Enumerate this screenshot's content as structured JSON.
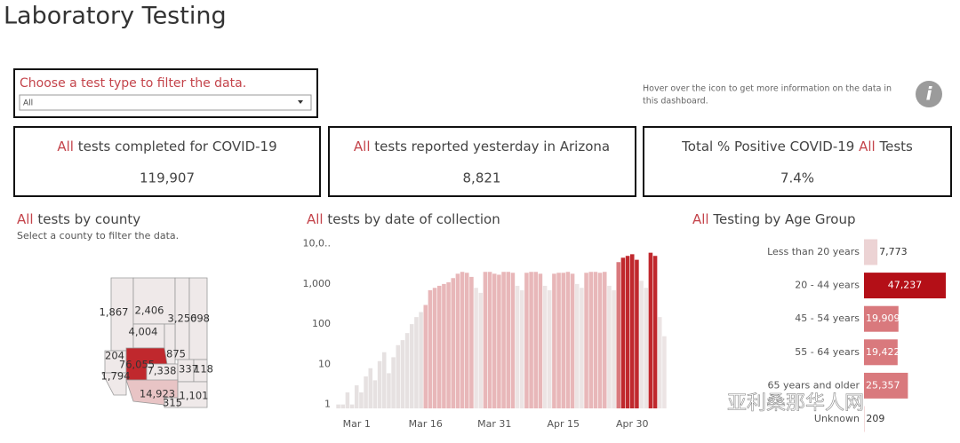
{
  "header": {
    "title": "Laboratory Testing"
  },
  "accent_color": "#c4444b",
  "filter": {
    "label": "Choose a test type to filter the data.",
    "selected": "All"
  },
  "info": {
    "lines": [
      "Hover over the icon to get more information on the data in",
      "this dashboard."
    ],
    "icon": "i"
  },
  "kpis": [
    {
      "parts": [
        {
          "text": "All",
          "accent": true
        },
        {
          "text": " tests completed for COVID-19"
        }
      ],
      "value": "119,907"
    },
    {
      "parts": [
        {
          "text": "All",
          "accent": true
        },
        {
          "text": " tests reported yesterday in Arizona"
        }
      ],
      "value": "8,821"
    },
    {
      "parts": [
        {
          "text": "Total % Positive COVID-19 "
        },
        {
          "text": "All",
          "accent": true
        },
        {
          "text": " Tests"
        }
      ],
      "value": "7.4%"
    }
  ],
  "county_map": {
    "parts": [
      {
        "text": "All",
        "accent": true
      },
      {
        "text": " tests by county"
      }
    ],
    "subtitle": "Select a county to filter the data.",
    "labels": [
      "1,867",
      "2,406",
      "3,250",
      "698",
      "4,004",
      "204",
      "76,055",
      "875",
      "7,338",
      "337",
      "118",
      "1,794",
      "14,923",
      "1,101",
      "315"
    ]
  },
  "chart_data": [
    {
      "type": "bar",
      "parts": [
        {
          "text": "All",
          "accent": true
        },
        {
          "text": " tests by date of collection"
        }
      ],
      "log": true,
      "grid": false,
      "ylim": [
        0.8,
        14000
      ],
      "yticks": [
        1,
        10,
        100,
        {
          "value": 1000,
          "label": "1,000"
        },
        {
          "value": 10000,
          "label": "10,0.."
        }
      ],
      "categories": [
        null,
        null,
        null,
        null,
        "Mar 1",
        null,
        null,
        null,
        null,
        null,
        null,
        null,
        null,
        null,
        null,
        null,
        null,
        null,
        null,
        "Mar 16",
        null,
        null,
        null,
        null,
        null,
        null,
        null,
        null,
        null,
        null,
        null,
        null,
        null,
        null,
        "Mar 31",
        null,
        null,
        null,
        null,
        null,
        null,
        null,
        null,
        null,
        null,
        null,
        null,
        null,
        null,
        "Apr 15",
        null,
        null,
        null,
        null,
        null,
        null,
        null,
        null,
        null,
        null,
        null,
        null,
        null,
        null,
        "Apr 30",
        null,
        null,
        null,
        null,
        null,
        null,
        null
      ],
      "values": [
        1,
        1,
        2,
        1,
        3,
        2,
        5,
        8,
        4,
        12,
        20,
        6,
        15,
        30,
        40,
        60,
        100,
        150,
        200,
        300,
        700,
        800,
        900,
        1000,
        1100,
        1400,
        1800,
        2000,
        1900,
        1500,
        800,
        600,
        2000,
        2000,
        1800,
        1700,
        2000,
        2000,
        1900,
        900,
        700,
        1900,
        2000,
        2000,
        1800,
        900,
        700,
        1800,
        1900,
        1900,
        2000,
        1800,
        1000,
        800,
        1900,
        2000,
        2000,
        1900,
        2000,
        900,
        700,
        3500,
        4500,
        5000,
        5500,
        4000,
        1200,
        800,
        6000,
        5000,
        150,
        50
      ],
      "colors": [
        "#e6e1e1",
        "#e6e1e1",
        "#e6e1e1",
        "#e6e1e1",
        "#e6e1e1",
        "#e6e1e1",
        "#e6e1e1",
        "#e6e1e1",
        "#e6e1e1",
        "#e6e1e1",
        "#e6e1e1",
        "#e6e1e1",
        "#e6e1e1",
        "#e6e1e1",
        "#e6e1e1",
        "#e6e1e1",
        "#e6e1e1",
        "#e6e1e1",
        "#e6e1e1",
        "#e8b7b9",
        "#e8b7b9",
        "#e8b7b9",
        "#e8b7b9",
        "#e8b7b9",
        "#e8b7b9",
        "#e8b7b9",
        "#e8b7b9",
        "#e8b7b9",
        "#e8b7b9",
        "#e8b7b9",
        "#ece4e4",
        "#ece4e4",
        "#e8b7b9",
        "#e8b7b9",
        "#e8b7b9",
        "#e8b7b9",
        "#e8b7b9",
        "#e8b7b9",
        "#e8b7b9",
        "#ece4e4",
        "#ece4e4",
        "#e8b7b9",
        "#e8b7b9",
        "#e8b7b9",
        "#e8b7b9",
        "#ece4e4",
        "#ece4e4",
        "#e8b7b9",
        "#e8b7b9",
        "#e8b7b9",
        "#e8b7b9",
        "#e8b7b9",
        "#ece4e4",
        "#ece4e4",
        "#e8b7b9",
        "#e8b7b9",
        "#e8b7b9",
        "#e8b7b9",
        "#e8b7b9",
        "#ece4e4",
        "#ece4e4",
        "#d9797d",
        "#c0282d",
        "#c0282d",
        "#c0282d",
        "#c0282d",
        "#ece4e4",
        "#ece4e4",
        "#c0282d",
        "#c0282d",
        "#ece4e4",
        "#ece4e4"
      ]
    },
    {
      "type": "hbar",
      "parts": [
        {
          "text": "All",
          "accent": true
        },
        {
          "text": " Testing by Age Group"
        }
      ],
      "categories": [
        "Less than 20 years",
        "20 - 44 years",
        "45 - 54 years",
        "55 - 64 years",
        "65 years and older",
        "Unknown"
      ],
      "values": [
        7773,
        47237,
        19909,
        19422,
        25357,
        209
      ],
      "value_labels": [
        "7,773",
        "47,237",
        "19,909",
        "19,422",
        "25,357",
        "209"
      ],
      "colors": [
        "#ecd3d4",
        "#b40f17",
        "#d9797d",
        "#d9797d",
        "#d9797d",
        "#e2a3a6"
      ]
    }
  ],
  "watermark": "亚利桑那华人网"
}
